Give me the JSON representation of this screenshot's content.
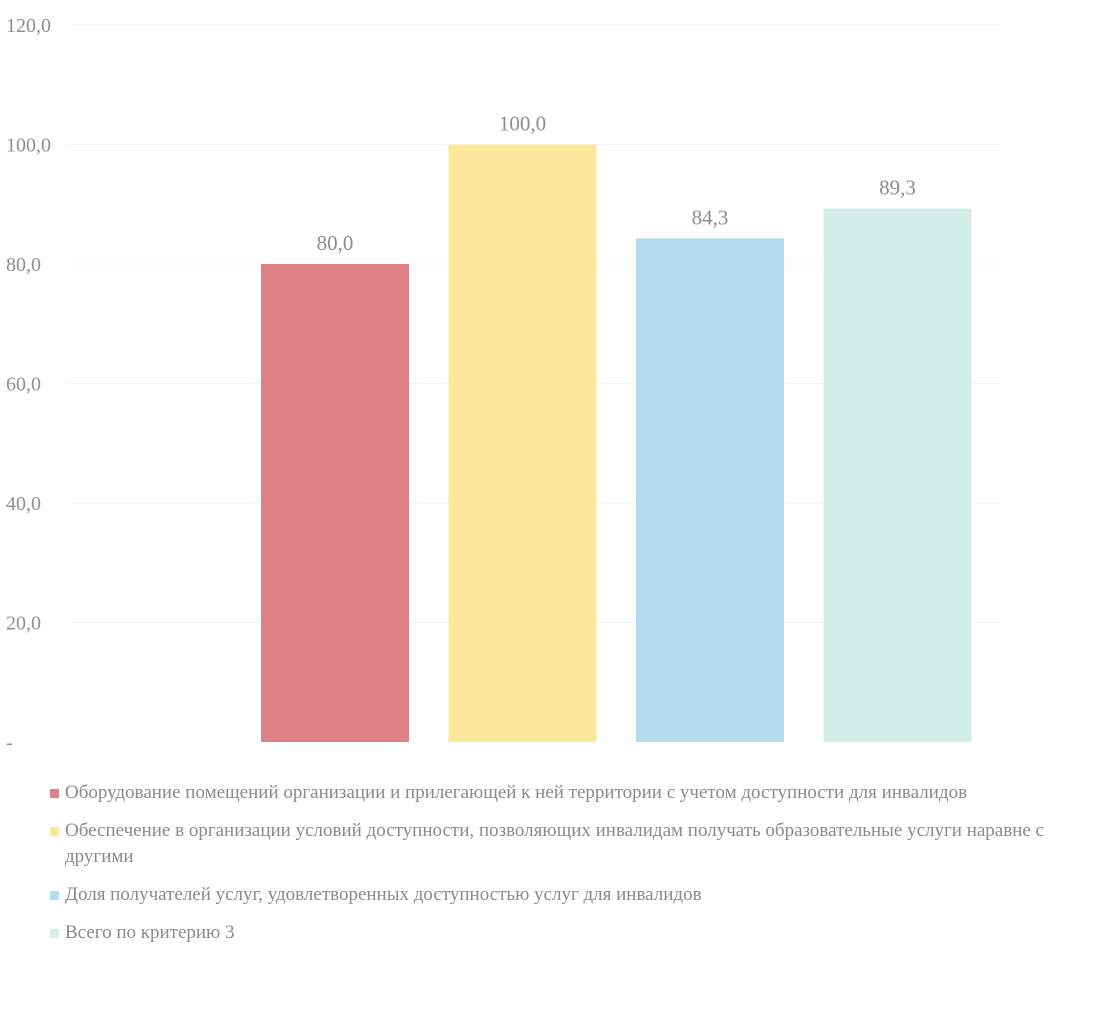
{
  "chart_data": {
    "type": "bar",
    "categories": [
      "Оборудование помещений организации и прилегающей к ней территории с учетом доступности для инвалидов",
      "Обеспечение в организации условий доступности, позволяющих инвалидам получать образовательные услуги наравне с другими",
      "Доля получателей услуг, удовлетворенных доступностью услуг для инвалидов",
      "Всего по критерию 3"
    ],
    "values": [
      80.0,
      100.0,
      84.3,
      89.3
    ],
    "value_labels": [
      "80,0",
      "100,0",
      "84,3",
      "89,3"
    ],
    "colors": [
      "#df8287",
      "#fbe89b",
      "#b3dded",
      "#d3eee6"
    ],
    "ylim": [
      0,
      120
    ],
    "yticks": [
      0,
      20,
      40,
      60,
      80,
      100,
      120
    ],
    "ytick_labels": [
      "-",
      "20,0",
      "40,0",
      "60,0",
      "80,0",
      "100,0",
      "120,0"
    ],
    "grid": true,
    "legend_position": "bottom"
  }
}
